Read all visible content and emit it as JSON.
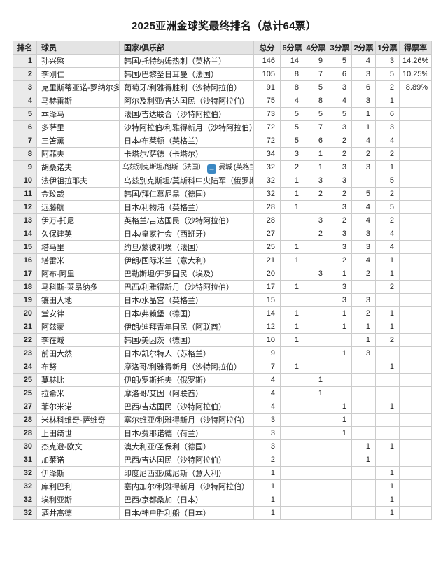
{
  "chart_data": {
    "type": "table",
    "title": "2025亚洲金球奖最终排名（总计64票）",
    "total_votes": 64,
    "columns": [
      "排名",
      "球员",
      "国家/俱乐部",
      "总分",
      "6分票",
      "4分票",
      "3分票",
      "2分票",
      "1分票",
      "得票率"
    ],
    "rows": [
      {
        "rank": "1",
        "player": "孙兴慜",
        "club": "韩国/托特纳姆热刺（英格兰）",
        "total": "146",
        "v6": "14",
        "v4": "9",
        "v3": "5",
        "v2": "4",
        "v1": "3",
        "pct": "14.26%"
      },
      {
        "rank": "2",
        "player": "李刚仁",
        "club": "韩国/巴黎圣日耳曼（法国）",
        "total": "105",
        "v6": "8",
        "v4": "7",
        "v3": "6",
        "v2": "3",
        "v1": "5",
        "pct": "10.25%"
      },
      {
        "rank": "3",
        "player": "克里斯蒂亚诺-罗纳尔多",
        "club": "葡萄牙/利雅得胜利（沙特阿拉伯）",
        "total": "91",
        "v6": "8",
        "v4": "5",
        "v3": "3",
        "v2": "6",
        "v1": "2",
        "pct": "8.89%"
      },
      {
        "rank": "4",
        "player": "马赫雷斯",
        "club": "阿尔及利亚/吉达国民（沙特阿拉伯）",
        "total": "75",
        "v6": "4",
        "v4": "8",
        "v3": "4",
        "v2": "3",
        "v1": "1",
        "pct": ""
      },
      {
        "rank": "5",
        "player": "本泽马",
        "club": "法国/吉达联合（沙特阿拉伯）",
        "total": "73",
        "v6": "5",
        "v4": "5",
        "v3": "5",
        "v2": "1",
        "v1": "6",
        "pct": ""
      },
      {
        "rank": "6",
        "player": "多萨里",
        "club": "沙特阿拉伯/利雅得新月（沙特阿拉伯）",
        "total": "72",
        "v6": "5",
        "v4": "7",
        "v3": "3",
        "v2": "1",
        "v1": "3",
        "pct": ""
      },
      {
        "rank": "7",
        "player": "三笘薰",
        "club": "日本/布莱顿（英格兰）",
        "total": "72",
        "v6": "5",
        "v4": "6",
        "v3": "2",
        "v2": "4",
        "v1": "4",
        "pct": ""
      },
      {
        "rank": "8",
        "player": "阿菲夫",
        "club": "卡塔尔/萨德（卡塔尔）",
        "total": "34",
        "v6": "3",
        "v4": "1",
        "v3": "2",
        "v2": "2",
        "v1": "2",
        "pct": ""
      },
      {
        "rank": "9",
        "player": "胡桑诺夫",
        "club": "乌兹别克斯坦/朗斯（法国）",
        "transfer": "曼城 (英格兰)",
        "total": "32",
        "v6": "2",
        "v4": "1",
        "v3": "3",
        "v2": "3",
        "v1": "1",
        "pct": ""
      },
      {
        "rank": "10",
        "player": "法伊祖拉耶夫",
        "club": "乌兹别克斯坦/莫斯科中央陆军（俄罗斯）",
        "total": "32",
        "v6": "1",
        "v4": "3",
        "v3": "3",
        "v2": "",
        "v1": "5",
        "pct": ""
      },
      {
        "rank": "11",
        "player": "金玟哉",
        "club": "韩国/拜仁慕尼黑（德国）",
        "total": "32",
        "v6": "1",
        "v4": "2",
        "v3": "2",
        "v2": "5",
        "v1": "2",
        "pct": ""
      },
      {
        "rank": "12",
        "player": "远藤航",
        "club": "日本/利物浦（英格兰）",
        "total": "28",
        "v6": "1",
        "v4": "",
        "v3": "3",
        "v2": "4",
        "v1": "5",
        "pct": ""
      },
      {
        "rank": "13",
        "player": "伊万-托尼",
        "club": "英格兰/吉达国民（沙特阿拉伯）",
        "total": "28",
        "v6": "",
        "v4": "3",
        "v3": "2",
        "v2": "4",
        "v1": "2",
        "pct": ""
      },
      {
        "rank": "14",
        "player": "久保建英",
        "club": "日本/皇家社会（西班牙）",
        "total": "27",
        "v6": "",
        "v4": "2",
        "v3": "3",
        "v2": "3",
        "v1": "4",
        "pct": ""
      },
      {
        "rank": "15",
        "player": "塔马里",
        "club": "约旦/蒙彼利埃（法国）",
        "total": "25",
        "v6": "1",
        "v4": "",
        "v3": "3",
        "v2": "3",
        "v1": "4",
        "pct": ""
      },
      {
        "rank": "16",
        "player": "塔雷米",
        "club": "伊朗/国际米兰（意大利）",
        "total": "21",
        "v6": "1",
        "v4": "",
        "v3": "2",
        "v2": "4",
        "v1": "1",
        "pct": ""
      },
      {
        "rank": "17",
        "player": "阿布-阿里",
        "club": "巴勒斯坦/开罗国民（埃及）",
        "total": "20",
        "v6": "",
        "v4": "3",
        "v3": "1",
        "v2": "2",
        "v1": "1",
        "pct": ""
      },
      {
        "rank": "18",
        "player": "马科斯-莱昂纳多",
        "club": "巴西/利雅得新月（沙特阿拉伯）",
        "total": "17",
        "v6": "1",
        "v4": "",
        "v3": "3",
        "v2": "",
        "v1": "2",
        "pct": ""
      },
      {
        "rank": "19",
        "player": "镰田大地",
        "club": "日本/水晶宫（英格兰）",
        "total": "15",
        "v6": "",
        "v4": "",
        "v3": "3",
        "v2": "3",
        "v1": "",
        "pct": ""
      },
      {
        "rank": "20",
        "player": "堂安律",
        "club": "日本/弗赖堡（德国）",
        "total": "14",
        "v6": "1",
        "v4": "",
        "v3": "1",
        "v2": "2",
        "v1": "1",
        "pct": ""
      },
      {
        "rank": "21",
        "player": "阿兹蒙",
        "club": "伊朗/迪拜青年国民（阿联酋）",
        "total": "12",
        "v6": "1",
        "v4": "",
        "v3": "1",
        "v2": "1",
        "v1": "1",
        "pct": ""
      },
      {
        "rank": "22",
        "player": "李在城",
        "club": "韩国/美因茨（德国）",
        "total": "10",
        "v6": "1",
        "v4": "",
        "v3": "",
        "v2": "1",
        "v1": "2",
        "pct": ""
      },
      {
        "rank": "23",
        "player": "前田大然",
        "club": "日本/凯尔特人（苏格兰）",
        "total": "9",
        "v6": "",
        "v4": "",
        "v3": "1",
        "v2": "3",
        "v1": "",
        "pct": ""
      },
      {
        "rank": "24",
        "player": "布努",
        "club": "摩洛哥/利雅得新月（沙特阿拉伯）",
        "total": "7",
        "v6": "1",
        "v4": "",
        "v3": "",
        "v2": "",
        "v1": "1",
        "pct": ""
      },
      {
        "rank": "25",
        "player": "莫赫比",
        "club": "伊朗/罗斯托夫（俄罗斯）",
        "total": "4",
        "v6": "",
        "v4": "1",
        "v3": "",
        "v2": "",
        "v1": "",
        "pct": ""
      },
      {
        "rank": "25",
        "player": "拉希米",
        "club": "摩洛哥/艾因（阿联酋）",
        "total": "4",
        "v6": "",
        "v4": "1",
        "v3": "",
        "v2": "",
        "v1": "",
        "pct": ""
      },
      {
        "rank": "27",
        "player": "菲尔米诺",
        "club": "巴西/吉达国民（沙特阿拉伯）",
        "total": "4",
        "v6": "",
        "v4": "",
        "v3": "1",
        "v2": "",
        "v1": "1",
        "pct": ""
      },
      {
        "rank": "28",
        "player": "米林科维奇-萨维奇",
        "club": "塞尔维亚/利雅得新月（沙特阿拉伯）",
        "total": "3",
        "v6": "",
        "v4": "",
        "v3": "1",
        "v2": "",
        "v1": "",
        "pct": ""
      },
      {
        "rank": "28",
        "player": "上田绮世",
        "club": "日本/费耶诺德（荷兰）",
        "total": "3",
        "v6": "",
        "v4": "",
        "v3": "1",
        "v2": "",
        "v1": "",
        "pct": ""
      },
      {
        "rank": "30",
        "player": "杰克逊-欧文",
        "club": "澳大利亚/圣保利（德国）",
        "total": "3",
        "v6": "",
        "v4": "",
        "v3": "",
        "v2": "1",
        "v1": "1",
        "pct": ""
      },
      {
        "rank": "31",
        "player": "加莱诺",
        "club": "巴西/吉达国民（沙特阿拉伯）",
        "total": "2",
        "v6": "",
        "v4": "",
        "v3": "",
        "v2": "1",
        "v1": "",
        "pct": ""
      },
      {
        "rank": "32",
        "player": "伊泽斯",
        "club": "印度尼西亚/威尼斯（意大利）",
        "total": "1",
        "v6": "",
        "v4": "",
        "v3": "",
        "v2": "",
        "v1": "1",
        "pct": ""
      },
      {
        "rank": "32",
        "player": "库利巴利",
        "club": "塞内加尔/利雅得新月（沙特阿拉伯）",
        "total": "1",
        "v6": "",
        "v4": "",
        "v3": "",
        "v2": "",
        "v1": "1",
        "pct": ""
      },
      {
        "rank": "32",
        "player": "埃利亚斯",
        "club": "巴西/京都桑加（日本）",
        "total": "1",
        "v6": "",
        "v4": "",
        "v3": "",
        "v2": "",
        "v1": "1",
        "pct": ""
      },
      {
        "rank": "32",
        "player": "酒井高德",
        "club": "日本/神户胜利船（日本）",
        "total": "1",
        "v6": "",
        "v4": "",
        "v3": "",
        "v2": "",
        "v1": "1",
        "pct": ""
      }
    ]
  },
  "icons": {
    "transfer_arrow": "→"
  },
  "colors": {
    "page_bg": "#ffffff",
    "header_bg": "#e4e4e4",
    "rank_col_bg": "#eaeaea",
    "border": "#cccccc",
    "outer_border": "#b0b0b0",
    "text": "#222222",
    "transfer_arrow_bg": "#3b88c3",
    "transfer_arrow_fg": "#ffffff"
  }
}
